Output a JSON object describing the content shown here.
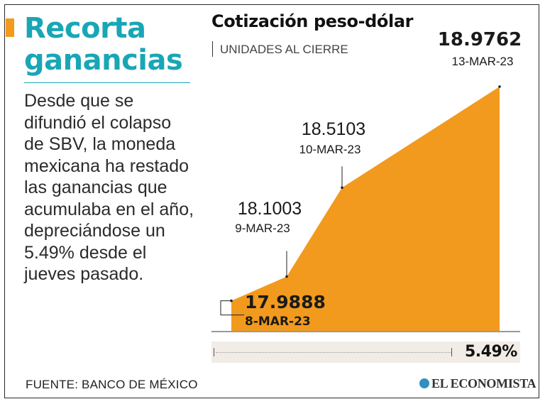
{
  "headline": {
    "line1": "Recorta",
    "line2": "ganancias"
  },
  "body_text": "Desde que se difundió el colapso de SBV, la moneda mexicana ha restado las ganancias que acumulaba en el año, depreciándose un 5.49% desde el jueves pasado.",
  "source": "FUENTE: BANCO DE MÉXICO",
  "logo": "EL ECONOMISTA",
  "colors": {
    "accent": "#f29a1d",
    "headline": "#19a6b6",
    "area": "#f29a1d",
    "text": "#2b2b2b"
  },
  "chart_data": {
    "type": "area",
    "title": "Cotización peso-dólar",
    "subtitle": "UNIDADES AL CIERRE",
    "x": [
      "8-MAR-23",
      "9-MAR-23",
      "10-MAR-23",
      "13-MAR-23"
    ],
    "values": [
      17.9888,
      18.1003,
      18.5103,
      18.9762
    ],
    "value_labels": [
      "17.9888",
      "18.1003",
      "18.5103",
      "18.9762"
    ],
    "ylim": [
      17.85,
      18.9762
    ],
    "grid": false,
    "change_label": "5.49%"
  }
}
